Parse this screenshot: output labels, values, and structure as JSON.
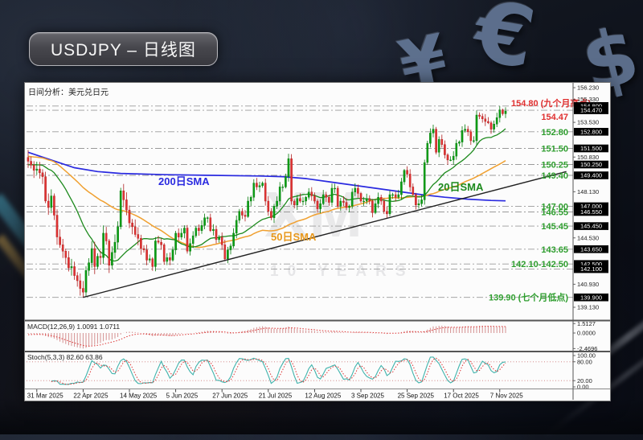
{
  "background": {
    "currency_symbols": {
      "yen": "¥",
      "euro": "€",
      "dollar": "$"
    }
  },
  "title_banner": {
    "text": "USDJPY – 日线图"
  },
  "chart": {
    "header": "日间分析：美元兑日元",
    "watermark": {
      "line1": "XM",
      "line2": "10 YEARS"
    },
    "sma_labels": [
      {
        "text": "200日SMA",
        "color": "#2a2ae0"
      },
      {
        "text": "50日SMA",
        "color": "#e8981c"
      },
      {
        "text": "20日SMA",
        "color": "#1d8a1d"
      }
    ],
    "macd_label": "MACD(12,26,9) 1.0091 1.0711",
    "stoch_label": "Stoch(5,3,3) 82.60 63.86"
  },
  "chart_data": {
    "type": "candlestick",
    "symbol": "USDJPY",
    "timeframe": "daily",
    "title": "USDJPY – 日线图",
    "first_open": 150.8,
    "closes": [
      150.5,
      150.2,
      149.8,
      149.9,
      149.6,
      149.3,
      147.4,
      146.9,
      147.8,
      146.3,
      144.6,
      144.0,
      143.5,
      143.0,
      142.2,
      142.3,
      141.6,
      141.2,
      140.6,
      140.3,
      142.0,
      142.6,
      143.7,
      142.3,
      143.1,
      143.0,
      144.9,
      144.3,
      142.4,
      143.4,
      144.2,
      145.4,
      148.2,
      147.5,
      146.7,
      145.7,
      145.4,
      144.8,
      144.5,
      143.7,
      143.6,
      142.8,
      142.9,
      142.3,
      144.3,
      144.2,
      144.0,
      142.7,
      143.0,
      142.8,
      143.6,
      144.9,
      144.6,
      144.9,
      145.3,
      143.5,
      144.1,
      144.7,
      145.3,
      145.1,
      145.5,
      146.1,
      146.1,
      145.1,
      145.2,
      144.4,
      144.6,
      144.0,
      142.9,
      143.6,
      143.9,
      144.9,
      145.9,
      146.6,
      146.3,
      146.2,
      147.4,
      147.7,
      148.8,
      148.5,
      148.6,
      148.8,
      147.4,
      146.6,
      146.1,
      147.0,
      147.4,
      148.5,
      148.5,
      149.3,
      150.7,
      147.4,
      147.1,
      147.6,
      147.4,
      147.4,
      147.7,
      148.1,
      147.8,
      147.4,
      146.8,
      147.2,
      147.9,
      147.7,
      147.3,
      148.4,
      148.4,
      147.0,
      147.4,
      147.3,
      146.9,
      147.0,
      148.1,
      148.4,
      148.0,
      147.4,
      147.4,
      147.6,
      147.4,
      146.5,
      147.2,
      147.7,
      147.4,
      146.6,
      146.4,
      147.9,
      147.9,
      147.7,
      147.9,
      148.9,
      149.8,
      149.5,
      148.5,
      147.9,
      147.1,
      147.2,
      147.5,
      150.4,
      151.9,
      152.7,
      153.0,
      151.2,
      152.2,
      151.8,
      151.0,
      150.6,
      150.6,
      150.9,
      151.9,
      152.0,
      152.9,
      153.0,
      152.8,
      152.1,
      152.1,
      154.1,
      154.0,
      153.8,
      153.6,
      153.5,
      153.0,
      153.4,
      153.9,
      154.5,
      154.2,
      154.4
    ],
    "warmup_closes": [
      153.2,
      152.9,
      153.1,
      152.6,
      152.3,
      152.5,
      152.0,
      151.7,
      151.9,
      151.5,
      151.2,
      151.4,
      151.0,
      150.8,
      151.0,
      150.6,
      150.4,
      150.7,
      150.3,
      150.1,
      150.4,
      150.0,
      149.8,
      150.1,
      149.7,
      149.9,
      150.3,
      150.0,
      149.7,
      150.1,
      150.5,
      150.2,
      149.9,
      150.3,
      150.7,
      150.4,
      150.1,
      150.5,
      150.9,
      150.8
    ],
    "extremes": {
      "low_day": 19,
      "low_price": 139.9,
      "high_day": 163,
      "high_price": 154.8
    },
    "x_ticks": [
      {
        "label": "31 Mar 2025",
        "day": 3
      },
      {
        "label": "22 Apr 2025",
        "day": 19
      },
      {
        "label": "14 May 2025",
        "day": 35
      },
      {
        "label": "5 Jun 2025",
        "day": 51
      },
      {
        "label": "27 Jun 2025",
        "day": 67
      },
      {
        "label": "21 Jul 2025",
        "day": 83
      },
      {
        "label": "12 Aug 2025",
        "day": 99
      },
      {
        "label": "3 Sep 2025",
        "day": 115
      },
      {
        "label": "25 Sep 2025",
        "day": 131
      },
      {
        "label": "17 Oct 2025",
        "day": 147
      },
      {
        "label": "7 Nov 2025",
        "day": 163
      }
    ],
    "y_axis": {
      "tick_start": 139.13,
      "tick_step": 0.9,
      "tick_count": 20,
      "top_price": 156.23,
      "bottom_price": 139.13
    },
    "levels": [
      {
        "price": 154.8,
        "label": "154.80 (九个月高点)",
        "color": "#e03030",
        "dy": 0
      },
      {
        "price": 154.47,
        "label": "154.47",
        "color": "#e03030",
        "dy": 12
      },
      {
        "price": 152.8,
        "label": "152.80",
        "color": "#2f9e2f",
        "dy": 4
      },
      {
        "price": 151.5,
        "label": "151.50",
        "color": "#2f9e2f",
        "dy": 4
      },
      {
        "price": 150.25,
        "label": "150.25",
        "color": "#2f9e2f",
        "dy": 4
      },
      {
        "price": 149.4,
        "label": "149.40",
        "color": "#2f9e2f",
        "dy": 4
      },
      {
        "price": 147.0,
        "label": "147.00",
        "color": "#2f9e2f",
        "dy": 4
      },
      {
        "price": 146.55,
        "label": "146.55",
        "color": "#2f9e2f",
        "dy": 4
      },
      {
        "price": 145.45,
        "label": "145.45",
        "color": "#2f9e2f",
        "dy": 4
      },
      {
        "price": 143.65,
        "label": "143.65",
        "color": "#2f9e2f",
        "dy": 4
      },
      {
        "price": 142.5,
        "label": "142.10-142.50",
        "color": "#2f9e2f",
        "dy": 4
      },
      {
        "price": 142.1,
        "label": "",
        "color": "#2f9e2f",
        "dy": 4
      },
      {
        "price": 139.9,
        "label": "139.90 (七个月低点)",
        "color": "#2f9e2f",
        "dy": 4
      }
    ],
    "sma200_points": [
      [
        0,
        151.2
      ],
      [
        8,
        150.6
      ],
      [
        16,
        150.0
      ],
      [
        24,
        149.7
      ],
      [
        32,
        149.55
      ],
      [
        48,
        149.45
      ],
      [
        64,
        149.4
      ],
      [
        80,
        149.35
      ],
      [
        88,
        149.3
      ],
      [
        96,
        149.15
      ],
      [
        104,
        148.9
      ],
      [
        112,
        148.65
      ],
      [
        120,
        148.4
      ],
      [
        128,
        148.15
      ],
      [
        136,
        147.9
      ],
      [
        144,
        147.7
      ],
      [
        152,
        147.55
      ],
      [
        160,
        147.45
      ],
      [
        165,
        147.42
      ]
    ],
    "trendline": {
      "x1_day": 19,
      "price1": 139.9,
      "x2_day": 186,
      "price2": 149.7
    },
    "macd": {
      "params": "12,26,9",
      "current": "1.0091 1.0711",
      "scale_ticks": [
        "1.5127",
        "0.0000",
        "-2.4696"
      ]
    },
    "stoch": {
      "params": "5,3,3",
      "current": "82.60 63.86",
      "scale_ticks": [
        "100.00",
        "80.00",
        "20.00",
        "0.00"
      ]
    },
    "colors": {
      "bull": "#0a9e14",
      "bull_border": "#067a0c",
      "bear": "#e03232",
      "bear_border": "#b01f1f",
      "sma20": "#1d8a1d",
      "sma50": "#f0a030",
      "sma200": "#2a2ae0",
      "trendline": "#222222",
      "grid": "#9a9a9a",
      "macd_hist": "#d49090",
      "macd_signal": "#dd3333",
      "stoch_k": "#3fb3ac",
      "stoch_d": "#dd3333",
      "badge_bg": "#000000",
      "badge_text": "#ffffff"
    }
  }
}
